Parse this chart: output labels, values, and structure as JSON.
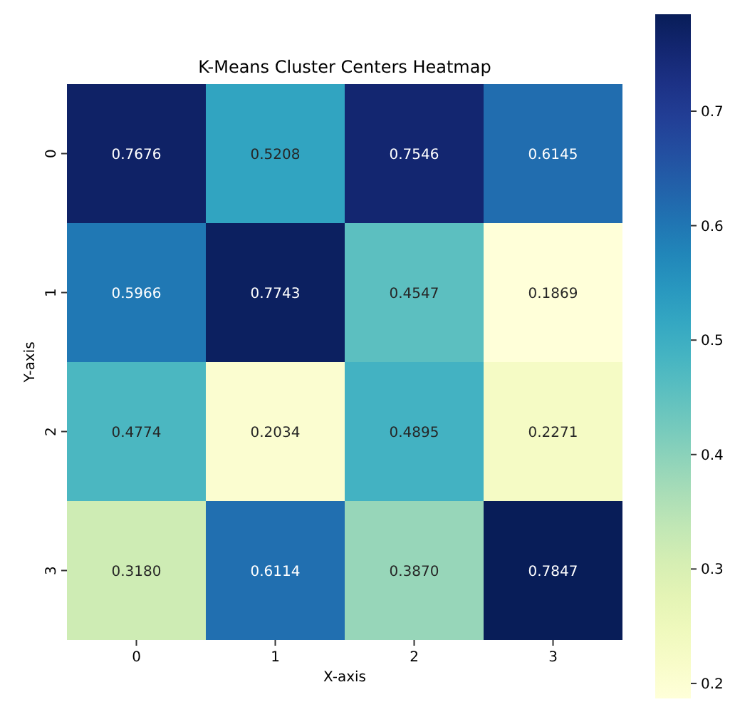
{
  "chart_data": {
    "type": "heatmap",
    "title": "K-Means Cluster Centers Heatmap",
    "xlabel": "X-axis",
    "ylabel": "Y-axis",
    "categories": [
      "0",
      "1",
      "2",
      "3"
    ],
    "y_categories": [
      "0",
      "1",
      "2",
      "3"
    ],
    "cells": [
      [
        0.7676,
        0.5208,
        0.7546,
        0.6145
      ],
      [
        0.5966,
        0.7743,
        0.4547,
        0.1869
      ],
      [
        0.4774,
        0.2034,
        0.4895,
        0.2271
      ],
      [
        0.318,
        0.6114,
        0.387,
        0.7847
      ]
    ],
    "cell_labels": [
      [
        "0.7676",
        "0.5208",
        "0.7546",
        "0.6145"
      ],
      [
        "0.5966",
        "0.7743",
        "0.4547",
        "0.1869"
      ],
      [
        "0.4774",
        "0.2034",
        "0.4895",
        "0.2271"
      ],
      [
        "0.3180",
        "0.6114",
        "0.3870",
        "0.7847"
      ]
    ],
    "clim": [
      0.1869,
      0.7847
    ],
    "cticks": [
      0.2,
      0.3,
      0.4,
      0.5,
      0.6,
      0.7
    ]
  }
}
